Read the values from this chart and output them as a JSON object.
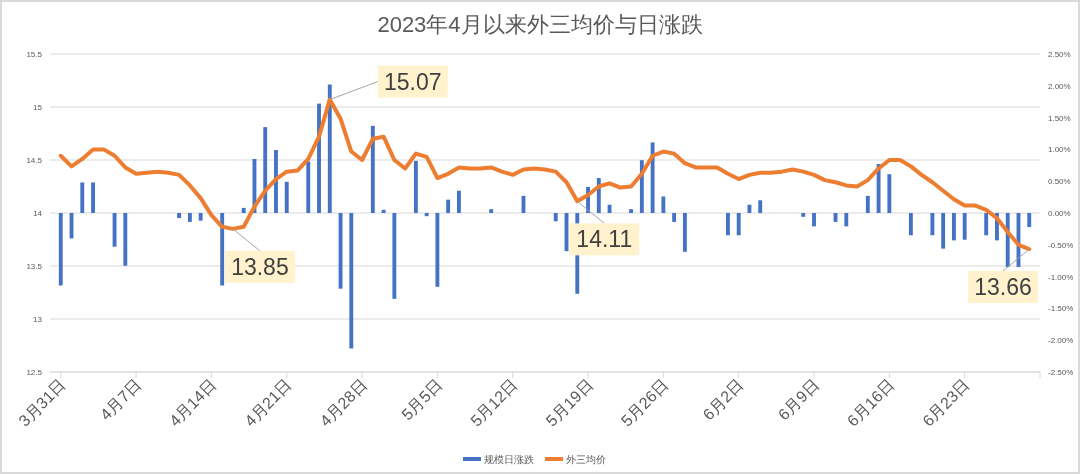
{
  "chart_data": {
    "type": "bar",
    "title": "2023年4月以来外三均价与日涨跌",
    "x": [
      "--03-31",
      "--04-01",
      "--04-02",
      "--04-03",
      "--04-04",
      "--04-05",
      "--04-06",
      "--04-07",
      "--04-08",
      "--04-09",
      "--04-10",
      "--04-11",
      "--04-12",
      "--04-13",
      "--04-14",
      "--04-15",
      "--04-16",
      "--04-17",
      "--04-18",
      "--04-19",
      "--04-20",
      "--04-21",
      "--04-22",
      "--04-23",
      "--04-24",
      "--04-25",
      "--04-26",
      "--04-27",
      "--04-28",
      "--04-29",
      "--04-30",
      "--05-01",
      "--05-02",
      "--05-03",
      "--05-04",
      "--05-05",
      "--05-06",
      "--05-07",
      "--05-08",
      "--05-09",
      "--05-10",
      "--05-11",
      "--05-12",
      "--05-13",
      "--05-14",
      "--05-15",
      "--05-16",
      "--05-17",
      "--05-18",
      "--05-19",
      "--05-20",
      "--05-21",
      "--05-22",
      "--05-23",
      "--05-24",
      "--05-25",
      "--05-26",
      "--05-27",
      "--05-28",
      "--05-29",
      "--05-30",
      "--05-31",
      "--06-01",
      "--06-02",
      "--06-03",
      "--06-04",
      "--06-05",
      "--06-06",
      "--06-07",
      "--06-08",
      "--06-09",
      "--06-10",
      "--06-11",
      "--06-12",
      "--06-13",
      "--06-14",
      "--06-15",
      "--06-16",
      "--06-17",
      "--06-18",
      "--06-19",
      "--06-20",
      "--06-21",
      "--06-22",
      "--06-23",
      "--06-24",
      "--06-25",
      "--06-26",
      "--06-27",
      "--06-28",
      "--06-29"
    ],
    "xlim": [
      "--03-30",
      "--06-30"
    ],
    "xticks": [
      {
        "value": "--03-31",
        "label": "3月31日"
      },
      {
        "value": "--04-07",
        "label": "4月7日"
      },
      {
        "value": "--04-14",
        "label": "4月14日"
      },
      {
        "value": "--04-21",
        "label": "4月21日"
      },
      {
        "value": "--04-28",
        "label": "4月28日"
      },
      {
        "value": "--05-05",
        "label": "5月5日"
      },
      {
        "value": "--05-12",
        "label": "5月12日"
      },
      {
        "value": "--05-19",
        "label": "5月19日"
      },
      {
        "value": "--05-26",
        "label": "5月26日"
      },
      {
        "value": "--06-02",
        "label": "6月2日"
      },
      {
        "value": "--06-09",
        "label": "6月9日"
      },
      {
        "value": "--06-16",
        "label": "6月16日"
      },
      {
        "value": "--06-23",
        "label": "6月23日"
      }
    ],
    "ylim": [
      12.5,
      15.5
    ],
    "yticks": [
      12.5,
      13,
      13.5,
      14,
      14.5,
      15,
      15.5
    ],
    "y2lim": [
      -2.5,
      2.5
    ],
    "y2ticks": [
      {
        "value": -2.5,
        "label": "-2.50%"
      },
      {
        "value": -2,
        "label": "-2.00%"
      },
      {
        "value": -1.5,
        "label": "-1.50%"
      },
      {
        "value": -1,
        "label": "-1.00%"
      },
      {
        "value": -0.5,
        "label": "-0.50%"
      },
      {
        "value": 0,
        "label": "0.00%"
      },
      {
        "value": 0.5,
        "label": "0.50%"
      },
      {
        "value": 1,
        "label": "1.00%"
      },
      {
        "value": 1.5,
        "label": "1.50%"
      },
      {
        "value": 2,
        "label": "2.00%"
      },
      {
        "value": 2.5,
        "label": "2.50%"
      }
    ],
    "grid": "y",
    "legend": "bottom",
    "series": [
      {
        "name": "规模日涨跌",
        "axis": "y2",
        "color": "#4472c4",
        "values": [
          -1.14,
          -0.4,
          0.48,
          0.48,
          null,
          -0.53,
          -0.83,
          null,
          null,
          null,
          null,
          -0.08,
          -0.14,
          -0.12,
          null,
          -1.14,
          null,
          0.08,
          0.85,
          1.35,
          0.99,
          0.49,
          null,
          0.81,
          1.72,
          2.02,
          -1.19,
          -2.13,
          null,
          1.37,
          0.05,
          -1.35,
          null,
          0.82,
          -0.05,
          -1.16,
          0.21,
          0.35,
          null,
          null,
          0.06,
          null,
          null,
          0.27,
          null,
          null,
          -0.13,
          -0.6,
          -1.27,
          0.41,
          0.55,
          0.13,
          null,
          0.06,
          0.83,
          1.11,
          0.26,
          -0.14,
          -0.61,
          null,
          null,
          null,
          -0.35,
          -0.35,
          0.13,
          0.2,
          null,
          null,
          null,
          -0.06,
          -0.21,
          null,
          -0.14,
          -0.21,
          null,
          0.27,
          0.77,
          0.61,
          null,
          -0.35,
          null,
          -0.35,
          -0.56,
          -0.43,
          -0.42,
          null,
          -0.35,
          -0.43,
          -0.85,
          -0.85,
          -0.22
        ]
      },
      {
        "name": "外三均价",
        "type": "line",
        "color": "#ed7d31",
        "values": [
          14.54,
          14.44,
          14.51,
          14.6,
          14.6,
          14.54,
          14.43,
          14.37,
          14.38,
          14.39,
          14.38,
          14.36,
          14.26,
          14.14,
          13.98,
          13.87,
          13.85,
          13.87,
          14.06,
          14.21,
          14.32,
          14.39,
          14.4,
          14.51,
          14.72,
          15.07,
          14.89,
          14.58,
          14.5,
          14.7,
          14.72,
          14.5,
          14.42,
          14.56,
          14.53,
          14.33,
          14.37,
          14.43,
          14.42,
          14.42,
          14.43,
          14.39,
          14.36,
          14.41,
          14.42,
          14.41,
          14.39,
          14.29,
          14.11,
          14.17,
          14.25,
          14.28,
          14.24,
          14.25,
          14.37,
          14.54,
          14.58,
          14.56,
          14.47,
          14.43,
          14.43,
          14.43,
          14.37,
          14.32,
          14.36,
          14.38,
          14.38,
          14.39,
          14.41,
          14.39,
          14.36,
          14.31,
          14.29,
          14.26,
          14.25,
          14.31,
          14.42,
          14.5,
          14.5,
          14.44,
          14.36,
          14.29,
          14.21,
          14.13,
          14.07,
          14.07,
          14.03,
          13.95,
          13.82,
          13.7,
          13.66
        ]
      }
    ],
    "annotations": [
      {
        "text": "13.85",
        "x": "--04-16",
        "y": 13.85
      },
      {
        "text": "15.07",
        "x": "--04-25",
        "y": 15.07
      },
      {
        "text": "14.11",
        "x": "--05-18",
        "y": 14.11
      },
      {
        "text": "13.66",
        "x": "--06-29",
        "y": 13.66
      }
    ]
  }
}
